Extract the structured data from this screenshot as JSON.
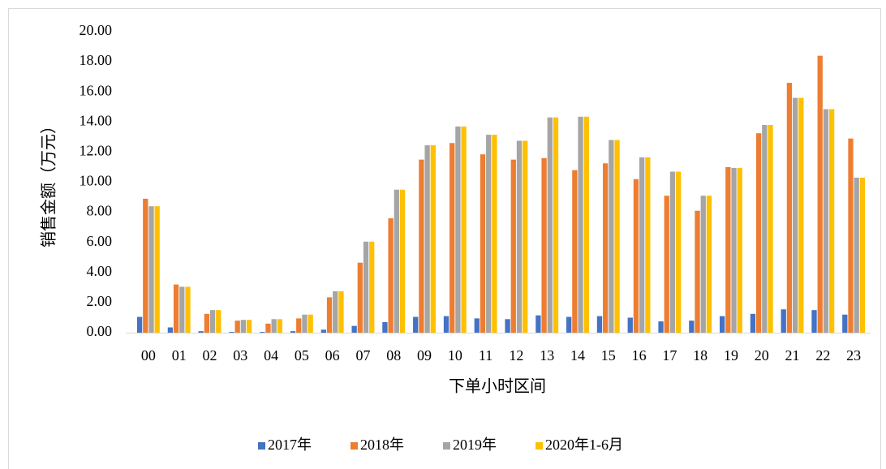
{
  "chart_data": {
    "type": "bar",
    "x_label": "下单小时区间",
    "y_label": "销售金额（万元）",
    "categories": [
      "00",
      "01",
      "02",
      "03",
      "04",
      "05",
      "06",
      "07",
      "08",
      "09",
      "10",
      "11",
      "12",
      "13",
      "14",
      "15",
      "16",
      "17",
      "18",
      "19",
      "20",
      "21",
      "22",
      "23"
    ],
    "series": [
      {
        "name": "2017年",
        "color": "#4472c4",
        "values": [
          1.05,
          0.35,
          0.1,
          0.05,
          0.05,
          0.1,
          0.2,
          0.45,
          0.7,
          1.05,
          1.1,
          0.95,
          0.9,
          1.15,
          1.05,
          1.1,
          1.0,
          0.75,
          0.8,
          1.1,
          1.25,
          1.55,
          1.5,
          1.2
        ]
      },
      {
        "name": "2018年",
        "color": "#ed7d31",
        "values": [
          8.9,
          3.2,
          1.25,
          0.8,
          0.6,
          0.95,
          2.35,
          4.65,
          7.6,
          11.5,
          12.6,
          11.85,
          11.5,
          11.6,
          10.8,
          11.25,
          10.2,
          9.1,
          8.1,
          11.0,
          13.25,
          16.6,
          18.4,
          12.9
        ]
      },
      {
        "name": "2019年",
        "color": "#a5a5a5",
        "values": [
          8.4,
          3.05,
          1.5,
          0.85,
          0.9,
          1.2,
          2.75,
          6.05,
          9.5,
          12.45,
          13.7,
          13.15,
          12.75,
          14.3,
          14.35,
          12.8,
          11.65,
          10.7,
          9.1,
          10.95,
          13.8,
          15.6,
          14.85,
          10.3
        ]
      },
      {
        "name": "2020年1-6月",
        "color": "#ffc000",
        "values": [
          8.4,
          3.05,
          1.5,
          0.85,
          0.9,
          1.2,
          2.75,
          6.05,
          9.5,
          12.45,
          13.7,
          13.15,
          12.75,
          14.3,
          14.35,
          12.8,
          11.65,
          10.7,
          9.1,
          10.95,
          13.8,
          15.6,
          14.85,
          10.3
        ]
      }
    ],
    "ylim": [
      0,
      20
    ],
    "yticks": [
      {
        "value": 0,
        "label": "0.00"
      },
      {
        "value": 2,
        "label": "2.00"
      },
      {
        "value": 4,
        "label": "4.00"
      },
      {
        "value": 6,
        "label": "6.00"
      },
      {
        "value": 8,
        "label": "8.00"
      },
      {
        "value": 10,
        "label": "10.00"
      },
      {
        "value": 12,
        "label": "12.00"
      },
      {
        "value": 14,
        "label": "14.00"
      },
      {
        "value": 16,
        "label": "16.00"
      },
      {
        "value": 18,
        "label": "18.00"
      },
      {
        "value": 20,
        "label": "20.00"
      }
    ],
    "grid": false,
    "legend": "bottom"
  }
}
